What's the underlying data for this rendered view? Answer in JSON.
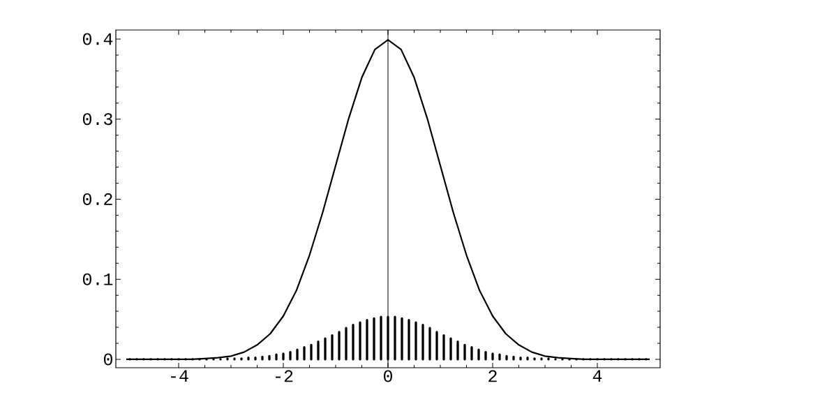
{
  "chart_data": {
    "type": "line",
    "xlim": [
      -5.2,
      5.2
    ],
    "ylim": [
      -0.0105,
      0.4113
    ],
    "xticks": [
      -4,
      -2,
      0,
      2,
      4
    ],
    "yticks": [
      0,
      0.1,
      0.2,
      0.3,
      0.4
    ],
    "grid": false,
    "marker": "none",
    "ref_lines": [
      {
        "axis": "x",
        "value": 0,
        "color": "#000000"
      }
    ],
    "series": [
      {
        "color": "#000000",
        "x": [
          -5,
          -4.75,
          -4.5,
          -4.25,
          -4,
          -3.75,
          -3.5,
          -3.25,
          -3,
          -2.75,
          -2.5,
          -2.25,
          -2,
          -1.75,
          -1.5,
          -1.25,
          -1,
          -0.75,
          -0.5,
          -0.25,
          0,
          0.25,
          0.5,
          0.75,
          1,
          1.25,
          1.5,
          1.75,
          2,
          2.25,
          2.5,
          2.75,
          3,
          3.25,
          3.5,
          3.75,
          4,
          4.25,
          4.5,
          4.75,
          5
        ],
        "values": [
          0,
          0,
          0,
          0,
          0,
          0,
          0.001,
          0.002,
          0.004,
          0.009,
          0.018,
          0.032,
          0.054,
          0.086,
          0.13,
          0.183,
          0.242,
          0.301,
          0.352,
          0.387,
          0.399,
          0.387,
          0.352,
          0.301,
          0.242,
          0.183,
          0.13,
          0.086,
          0.054,
          0.032,
          0.018,
          0.009,
          0.004,
          0.002,
          0.001,
          0,
          0,
          0,
          0,
          0,
          0
        ]
      },
      {
        "type": "bar",
        "color": "#000000",
        "x": [
          -4.9333,
          -4.8,
          -4.6667,
          -4.5333,
          -4.4,
          -4.2667,
          -4.1333,
          -4,
          -3.8667,
          -3.7333,
          -3.6,
          -3.4667,
          -3.3333,
          -3.2,
          -3.0667,
          -2.9333,
          -2.8,
          -2.6667,
          -2.5333,
          -2.4,
          -2.2667,
          -2.1333,
          -2,
          -1.8667,
          -1.7333,
          -1.6,
          -1.4667,
          -1.3333,
          -1.2,
          -1.0667,
          -0.9333,
          -0.8,
          -0.6667,
          -0.5333,
          -0.4,
          -0.2667,
          -0.1333,
          0,
          0.1333,
          0.2667,
          0.4,
          0.5333,
          0.6667,
          0.8,
          0.9333,
          1.0667,
          1.2,
          1.3333,
          1.4667,
          1.6,
          1.7333,
          1.8667,
          2,
          2.1333,
          2.2667,
          2.4,
          2.5333,
          2.6667,
          2.8,
          2.9333,
          3.0667,
          3.2,
          3.3333,
          3.4667,
          3.6,
          3.7333,
          3.8667,
          4,
          4.1333,
          4.2667,
          4.4,
          4.5333,
          4.6667,
          4.8,
          4.9333
        ],
        "values": [
          0,
          0,
          0,
          0,
          0,
          0,
          0,
          0,
          0,
          0,
          0,
          0,
          0,
          0,
          0.001,
          0.001,
          0.001,
          0.002,
          0.002,
          0.003,
          0.004,
          0.006,
          0.007,
          0.009,
          0.012,
          0.015,
          0.018,
          0.022,
          0.026,
          0.03,
          0.034,
          0.039,
          0.043,
          0.046,
          0.049,
          0.051,
          0.053,
          0.053,
          0.053,
          0.051,
          0.049,
          0.046,
          0.043,
          0.039,
          0.034,
          0.03,
          0.026,
          0.022,
          0.018,
          0.015,
          0.012,
          0.009,
          0.007,
          0.006,
          0.004,
          0.003,
          0.002,
          0.002,
          0.001,
          0.001,
          0.001,
          0,
          0,
          0,
          0,
          0,
          0,
          0,
          0,
          0,
          0,
          0,
          0,
          0,
          0
        ]
      }
    ]
  }
}
